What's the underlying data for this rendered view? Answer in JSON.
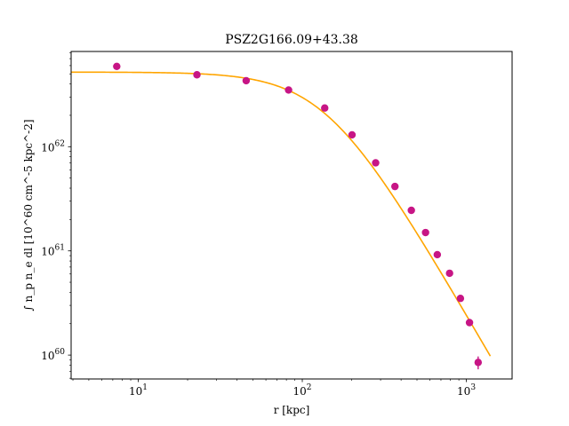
{
  "chart_data": {
    "type": "scatter",
    "title": "PSZ2G166.09+43.38",
    "xlabel": "r [kpc]",
    "ylabel": "∫ n_p n_e dl [10^60 cm^-5 kpc^-2]",
    "x_scale": "log",
    "y_scale": "log",
    "xlim": [
      3.9,
      1900
    ],
    "ylim": [
      5.9e+59,
      8.2e+62
    ],
    "x_ticks": [
      {
        "value": 10,
        "base": "10",
        "exp": "1"
      },
      {
        "value": 100,
        "base": "10",
        "exp": "2"
      },
      {
        "value": 1000,
        "base": "10",
        "exp": "3"
      }
    ],
    "y_ticks": [
      {
        "value": 1e+60,
        "base": "10",
        "exp": "60"
      },
      {
        "value": 1e+61,
        "base": "10",
        "exp": "61"
      },
      {
        "value": 1e+62,
        "base": "10",
        "exp": "62"
      }
    ],
    "grid": false,
    "legend": "none",
    "colors": {
      "points": "#c71585",
      "model": "#ffa500"
    },
    "series": [
      {
        "kind": "points",
        "x": [
          7.4,
          22.8,
          45.5,
          82.5,
          137,
          201,
          280,
          367,
          462,
          564,
          665,
          790,
          920,
          1045,
          1180
        ],
        "y": [
          5.9e+62,
          4.9e+62,
          4.3e+62,
          3.5e+62,
          2.35e+62,
          1.3e+62,
          7e+61,
          4.15e+61,
          2.45e+61,
          1.5e+61,
          9.2e+60,
          6.1e+60,
          3.5e+60,
          2.05e+60,
          8.5e+59
        ],
        "yerr": [
          3.5e+61,
          2e+61,
          1.5e+61,
          1e+61,
          8e+60,
          4e+60,
          2e+60,
          1.2e+60,
          7e+59,
          5e+59,
          3e+59,
          2e+59,
          1.5e+59,
          1.2e+59,
          1.2e+59
        ]
      },
      {
        "kind": "line",
        "model": "beta",
        "amplitude": 5.2e+62,
        "rc": 140,
        "beta": 0.62,
        "x_range": [
          3.9,
          1400
        ]
      }
    ]
  }
}
